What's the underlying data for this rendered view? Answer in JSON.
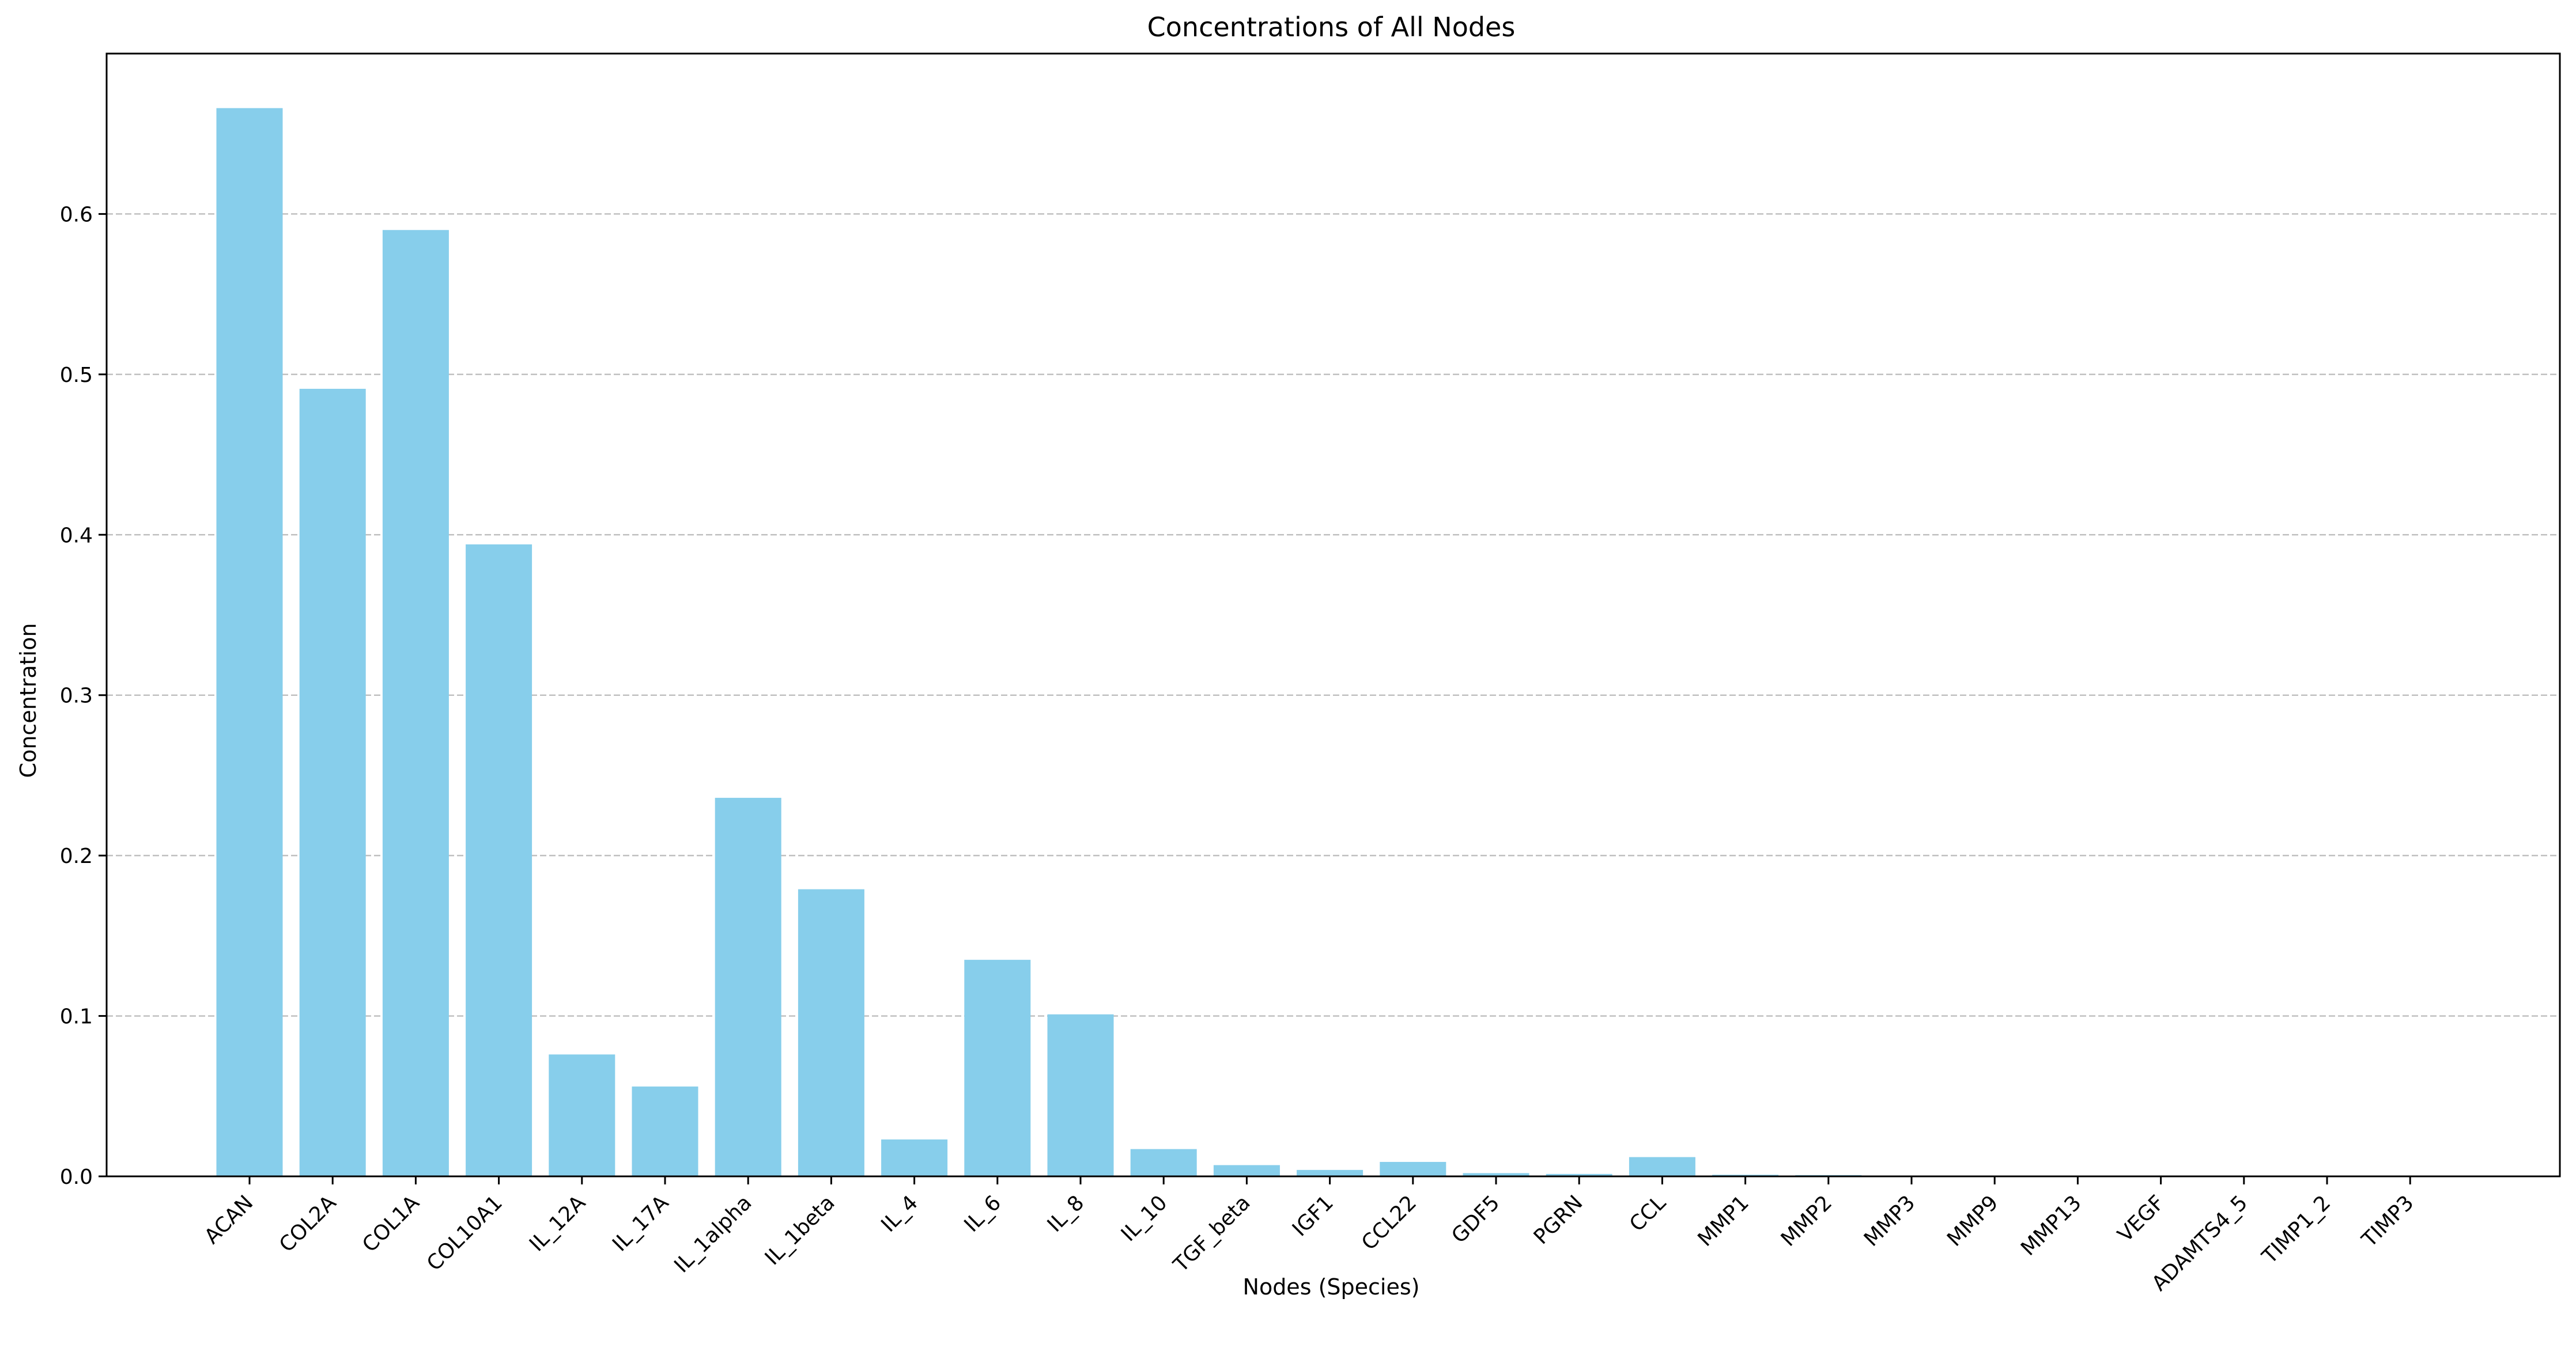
{
  "chart_data": {
    "type": "bar",
    "title": "Concentrations of All Nodes",
    "xlabel": "Nodes (Species)",
    "ylabel": "Concentration",
    "categories": [
      "ACAN",
      "COL2A",
      "COL1A",
      "COL10A1",
      "IL_12A",
      "IL_17A",
      "IL_1alpha",
      "IL_1beta",
      "IL_4",
      "IL_6",
      "IL_8",
      "IL_10",
      "TGF_beta",
      "IGF1",
      "CCL22",
      "GDF5",
      "PGRN",
      "CCL",
      "MMP1",
      "MMP2",
      "MMP3",
      "MMP9",
      "MMP13",
      "VEGF",
      "ADAMTS4_5",
      "TIMP1_2",
      "TIMP3"
    ],
    "values": [
      0.666,
      0.491,
      0.59,
      0.394,
      0.076,
      0.056,
      0.236,
      0.179,
      0.023,
      0.135,
      0.101,
      0.017,
      0.007,
      0.004,
      0.009,
      0.002,
      0.0015,
      0.012,
      0.001,
      0.0008,
      0.0005,
      0.0004,
      0.0002,
      0.0001,
      0.0001,
      0.0001,
      0.0001
    ],
    "ylim": [
      0,
      0.7
    ],
    "yticks": [
      "0.0",
      "0.1",
      "0.2",
      "0.3",
      "0.4",
      "0.5",
      "0.6"
    ],
    "grid": "y-dashed",
    "bar_color": "#87ceeb"
  }
}
